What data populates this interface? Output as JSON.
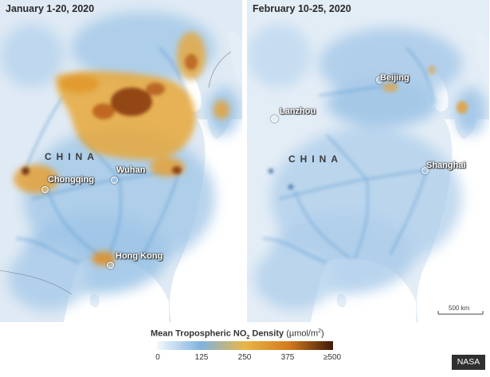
{
  "panels": {
    "left": {
      "title": "January 1-20, 2020",
      "country": "CHINA",
      "cities": [
        "Chongqing",
        "Wuhan",
        "Hong Kong"
      ]
    },
    "right": {
      "title": "February 10-25, 2020",
      "country": "CHINA",
      "cities": [
        "Beijing",
        "Lanzhou",
        "Shanghai"
      ],
      "scale_label": "500 km"
    }
  },
  "legend": {
    "title_main": "Mean Tropospheric NO",
    "title_sub": "2",
    "title_rest": " Density ",
    "unit_main": "(µmol/m",
    "unit_sup": "2",
    "unit_close": ")",
    "ticks": [
      "0",
      "125",
      "250",
      "375",
      "≥500"
    ],
    "color_stops": [
      "#f3f8fc",
      "#7fb3de",
      "#e9b645",
      "#d47a1f",
      "#3f1a08"
    ]
  },
  "credit": "NASA",
  "colors": {
    "land_low": "#e8f1f9",
    "no2_blue": "#6fa8d8",
    "no2_orange": "#e59b2c",
    "no2_dark": "#4a1e0c",
    "sea": "#ffffff"
  }
}
